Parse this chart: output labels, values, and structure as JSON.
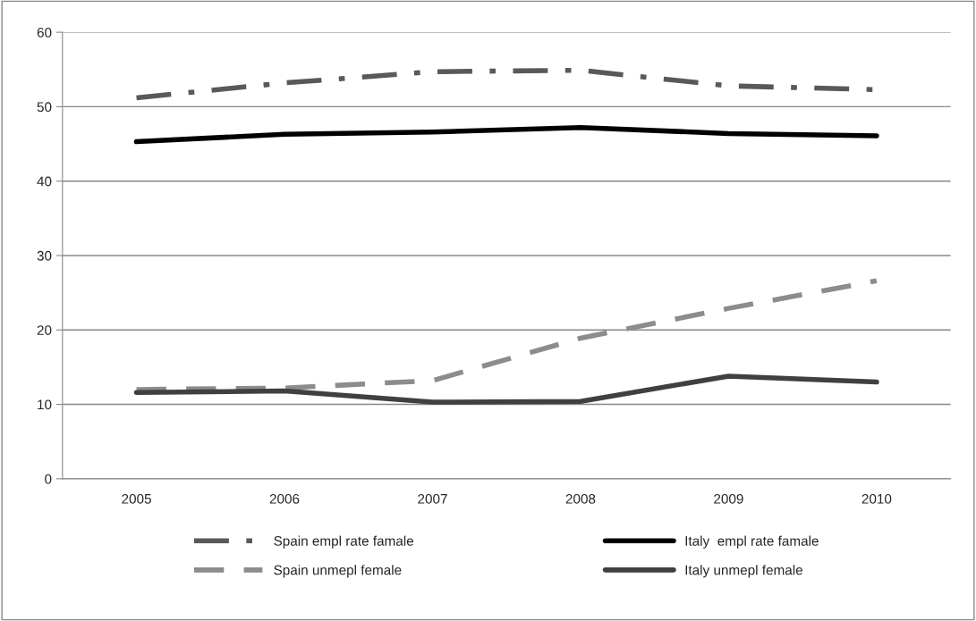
{
  "chart_data": {
    "type": "line",
    "categories": [
      "2005",
      "2006",
      "2007",
      "2008",
      "2009",
      "2010"
    ],
    "series": [
      {
        "name": "Spain empl rate famale",
        "color": "#595959",
        "line_style": "dashdot",
        "values": [
          51.2,
          53.2,
          54.7,
          54.9,
          52.8,
          52.3
        ]
      },
      {
        "name": "Italy  empl rate famale",
        "color": "#000000",
        "line_style": "solid",
        "values": [
          45.3,
          46.3,
          46.6,
          47.2,
          46.4,
          46.1
        ]
      },
      {
        "name": "Spain unmepl female",
        "color": "#8c8c8c",
        "line_style": "dashed",
        "values": [
          12.0,
          12.2,
          13.2,
          18.9,
          22.9,
          26.6
        ]
      },
      {
        "name": "Italy unmepl female",
        "color": "#404040",
        "line_style": "solid",
        "values": [
          11.6,
          11.8,
          10.3,
          10.4,
          13.8,
          13.0
        ]
      }
    ],
    "ylim": [
      0,
      60
    ],
    "yticks": [
      0,
      10,
      20,
      30,
      40,
      50,
      60
    ],
    "grid": "y",
    "legend": "bottom",
    "marker": "none"
  }
}
